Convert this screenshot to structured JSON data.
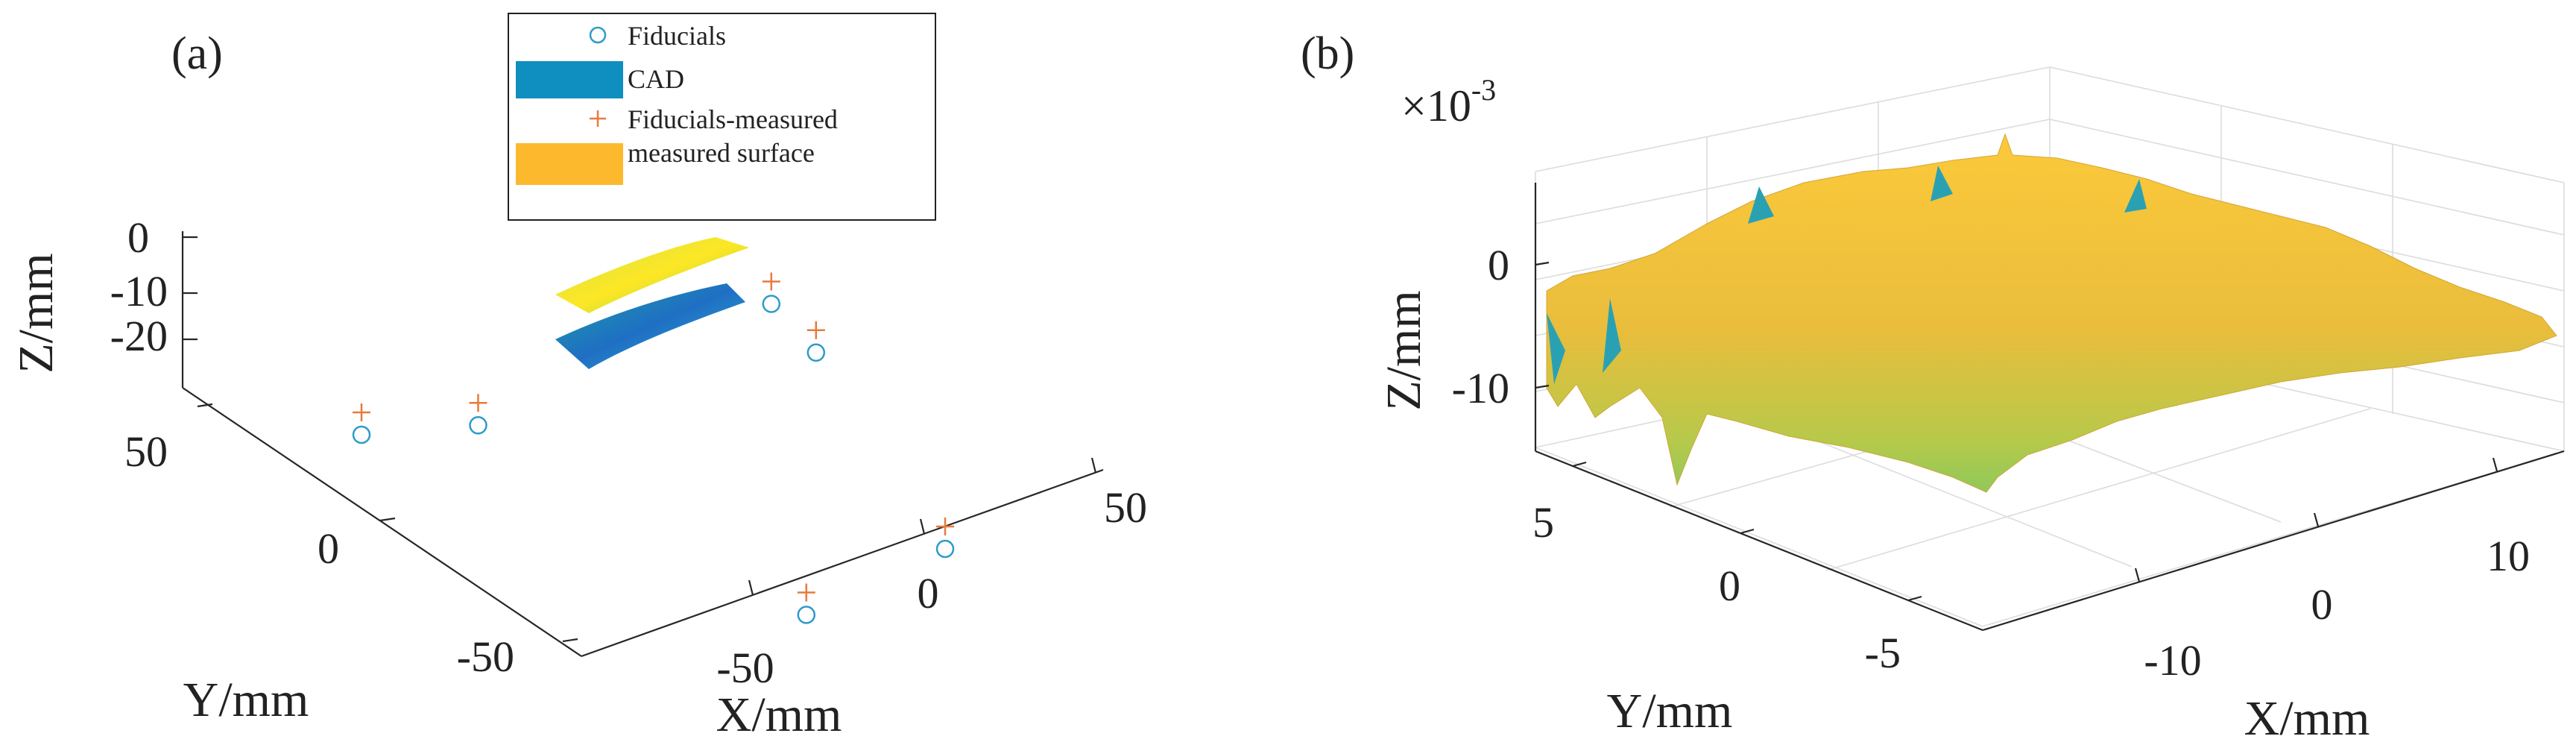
{
  "panel_a": {
    "label": "(a)",
    "legend": [
      "Fiducials",
      "CAD",
      "Fiducials-measured",
      "measured surface"
    ],
    "zlabel": "Z/mm",
    "ylabel": "Y/mm",
    "xlabel": "X/mm",
    "zticks": [
      "0",
      "-10",
      "-20"
    ],
    "yticks": [
      "50",
      "0",
      "-50"
    ],
    "xticks": [
      "-50",
      "0",
      "50"
    ]
  },
  "panel_b": {
    "label": "(b)",
    "exponent_base": "×10",
    "exponent_power": "-3",
    "zlabel": "Z/mm",
    "ylabel": "Y/mm",
    "xlabel": "X/mm",
    "zticks": [
      "0",
      "-10"
    ],
    "yticks": [
      "5",
      "0",
      "-5"
    ],
    "xticks": [
      "-10",
      "0",
      "10"
    ]
  },
  "chart_data": [
    {
      "type": "scatter",
      "projection": "3d",
      "series": [
        {
          "name": "Fiducials",
          "marker": "o",
          "color": "#2E9BC8",
          "x": [
            -60,
            -35,
            -25,
            20,
            50,
            55
          ],
          "y": [
            60,
            50,
            -45,
            -40,
            35,
            55
          ],
          "z": [
            -15,
            -15,
            -15,
            -15,
            -15,
            -15
          ]
        },
        {
          "name": "Fiducials-measured",
          "marker": "+",
          "color": "#E87A3C",
          "x": [
            -60,
            -35,
            -25,
            20,
            50,
            55
          ],
          "y": [
            60,
            50,
            -45,
            -40,
            35,
            55
          ],
          "z": [
            -5,
            -5,
            -5,
            -5,
            -5,
            -5
          ]
        },
        {
          "name": "CAD",
          "kind": "surface",
          "color": "#1F9BC4"
        },
        {
          "name": "measured surface",
          "kind": "surface",
          "color": "#FDB92E"
        }
      ],
      "zlim": [
        -20,
        0
      ],
      "grid": false,
      "legend_position": "top-center"
    },
    {
      "type": "area",
      "projection": "3d surface",
      "zlim": [
        -0.014,
        0.006
      ],
      "xlim": [
        -13,
        13
      ],
      "ylim": [
        -7,
        7
      ],
      "z_scale_exponent": -3,
      "grid": true,
      "colormap": "parula"
    }
  ]
}
